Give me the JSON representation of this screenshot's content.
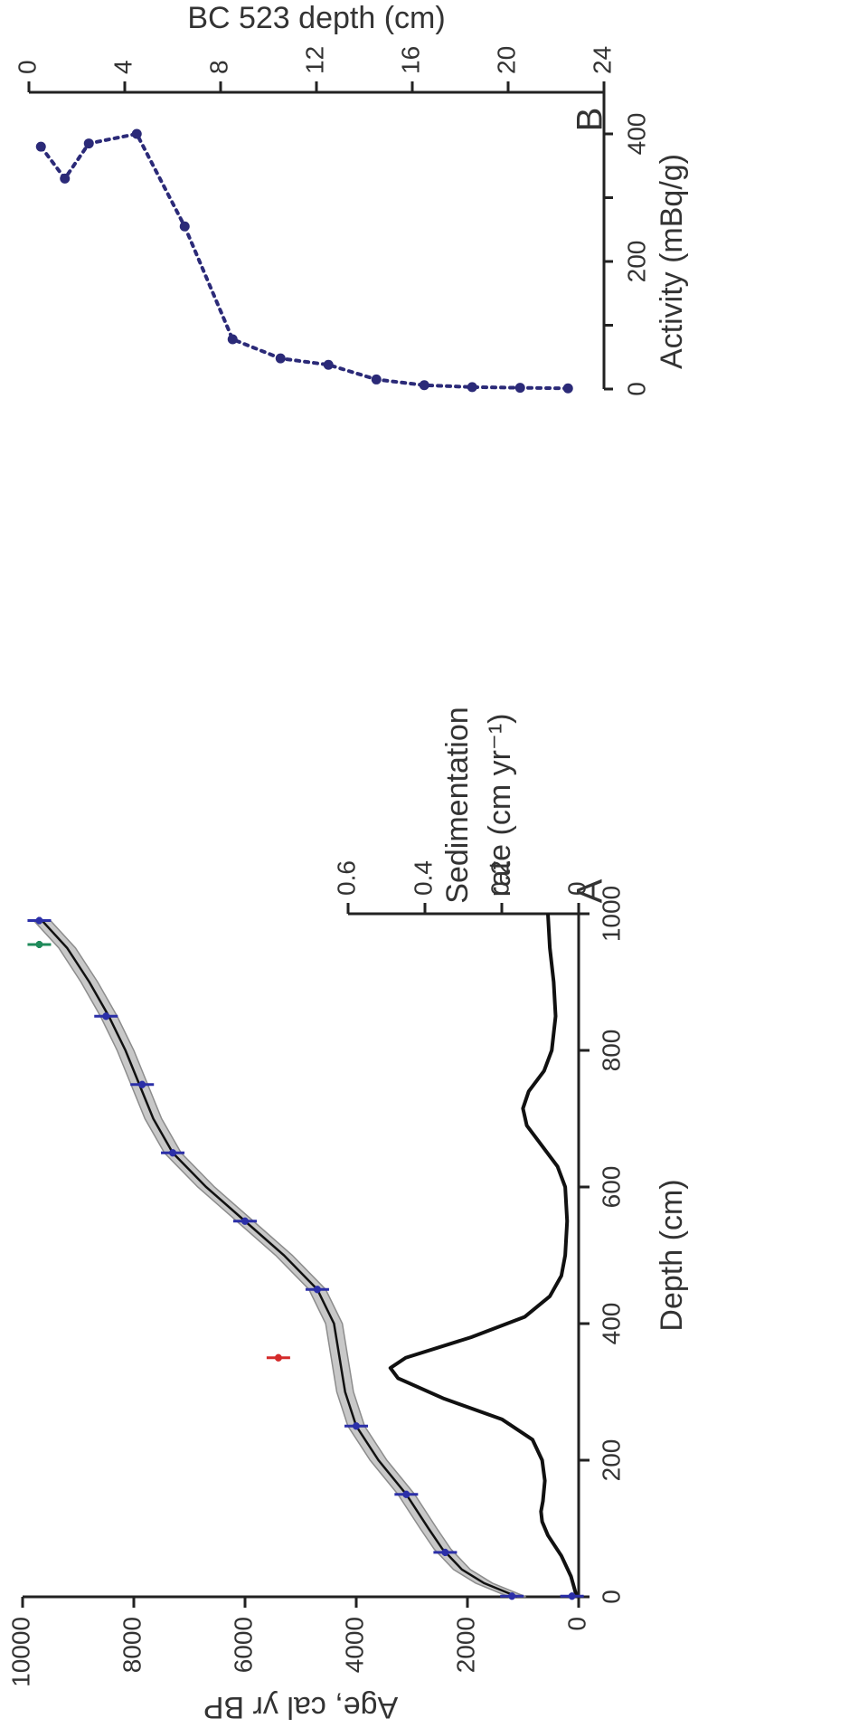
{
  "chart_data": [
    {
      "panel": "A",
      "type": "line",
      "xlabel": "Depth (cm)",
      "ylabel": "Age, cal yr BP",
      "xlim": [
        0,
        1000
      ],
      "ylim": [
        0,
        10000
      ],
      "x_ticks": [
        0,
        200,
        400,
        600,
        800,
        1000
      ],
      "y_ticks": [
        0,
        2000,
        4000,
        6000,
        8000,
        10000
      ],
      "secondary_ylabel": "Sedimentation rate (cm yr⁻¹)",
      "secondary_ylabel_lines": [
        "Sedimentation",
        "rate (cm yr⁻¹)"
      ],
      "secondary_ylim": [
        0,
        0.6
      ],
      "secondary_y_ticks": [
        0,
        0.2,
        0.4,
        0.6
      ],
      "secondary_y_tick_labels": [
        "0",
        "0.2",
        "0.4",
        "0.6"
      ],
      "age_model": {
        "x": [
          0,
          20,
          40,
          70,
          100,
          150,
          200,
          250,
          300,
          350,
          400,
          450,
          500,
          550,
          600,
          650,
          700,
          750,
          800,
          850,
          900,
          950,
          990
        ],
        "y": [
          1100,
          1700,
          2100,
          2450,
          2700,
          3100,
          3600,
          4000,
          4200,
          4300,
          4400,
          4700,
          5300,
          6000,
          6700,
          7300,
          7650,
          7900,
          8150,
          8450,
          8800,
          9200,
          9650
        ],
        "envelope": 150
      },
      "dated_samples": {
        "x": [
          1,
          1,
          65,
          150,
          250,
          450,
          550,
          650,
          750,
          850,
          990
        ],
        "y": [
          120,
          1200,
          2400,
          3100,
          4000,
          4700,
          6000,
          7300,
          7850,
          8500,
          9700
        ],
        "color": "#2b2fa8"
      },
      "outliers": [
        {
          "x": 350,
          "y": 5400,
          "color": "#d42a2a"
        },
        {
          "x": 955,
          "y": 9700,
          "color": "#1f8a5a"
        }
      ],
      "sedimentation_rate": {
        "x": [
          0,
          30,
          60,
          90,
          110,
          125,
          140,
          170,
          200,
          230,
          260,
          290,
          320,
          335,
          350,
          380,
          410,
          440,
          470,
          500,
          550,
          600,
          630,
          660,
          690,
          715,
          740,
          770,
          800,
          850,
          900,
          950,
          1000
        ],
        "y": [
          0.005,
          0.02,
          0.045,
          0.08,
          0.095,
          0.098,
          0.093,
          0.088,
          0.095,
          0.12,
          0.2,
          0.35,
          0.47,
          0.49,
          0.45,
          0.28,
          0.14,
          0.075,
          0.045,
          0.035,
          0.03,
          0.035,
          0.055,
          0.095,
          0.135,
          0.145,
          0.13,
          0.09,
          0.07,
          0.06,
          0.065,
          0.075,
          0.08
        ]
      }
    },
    {
      "panel": "B",
      "type": "line",
      "ylabel": "BC 523 depth (cm)",
      "xlabel": "Activity (mBq/g)",
      "ylim": [
        0,
        24
      ],
      "y_ticks": [
        0,
        4,
        8,
        12,
        16,
        20,
        24
      ],
      "x_ticks": [
        0,
        200,
        400
      ],
      "x_minor_ticks": [
        0,
        100,
        200,
        300,
        400
      ],
      "xlim": [
        0,
        430
      ],
      "series": [
        {
          "depth": [
            0.5,
            1.5,
            2.5,
            4.5,
            6.5,
            8.5,
            10.5,
            12.5,
            14.5,
            16.5,
            18.5,
            20.5,
            22.5
          ],
          "activity": [
            380,
            330,
            385,
            400,
            255,
            78,
            48,
            38,
            15,
            6,
            3,
            2,
            1
          ],
          "color": "#2b2a78"
        }
      ]
    }
  ]
}
